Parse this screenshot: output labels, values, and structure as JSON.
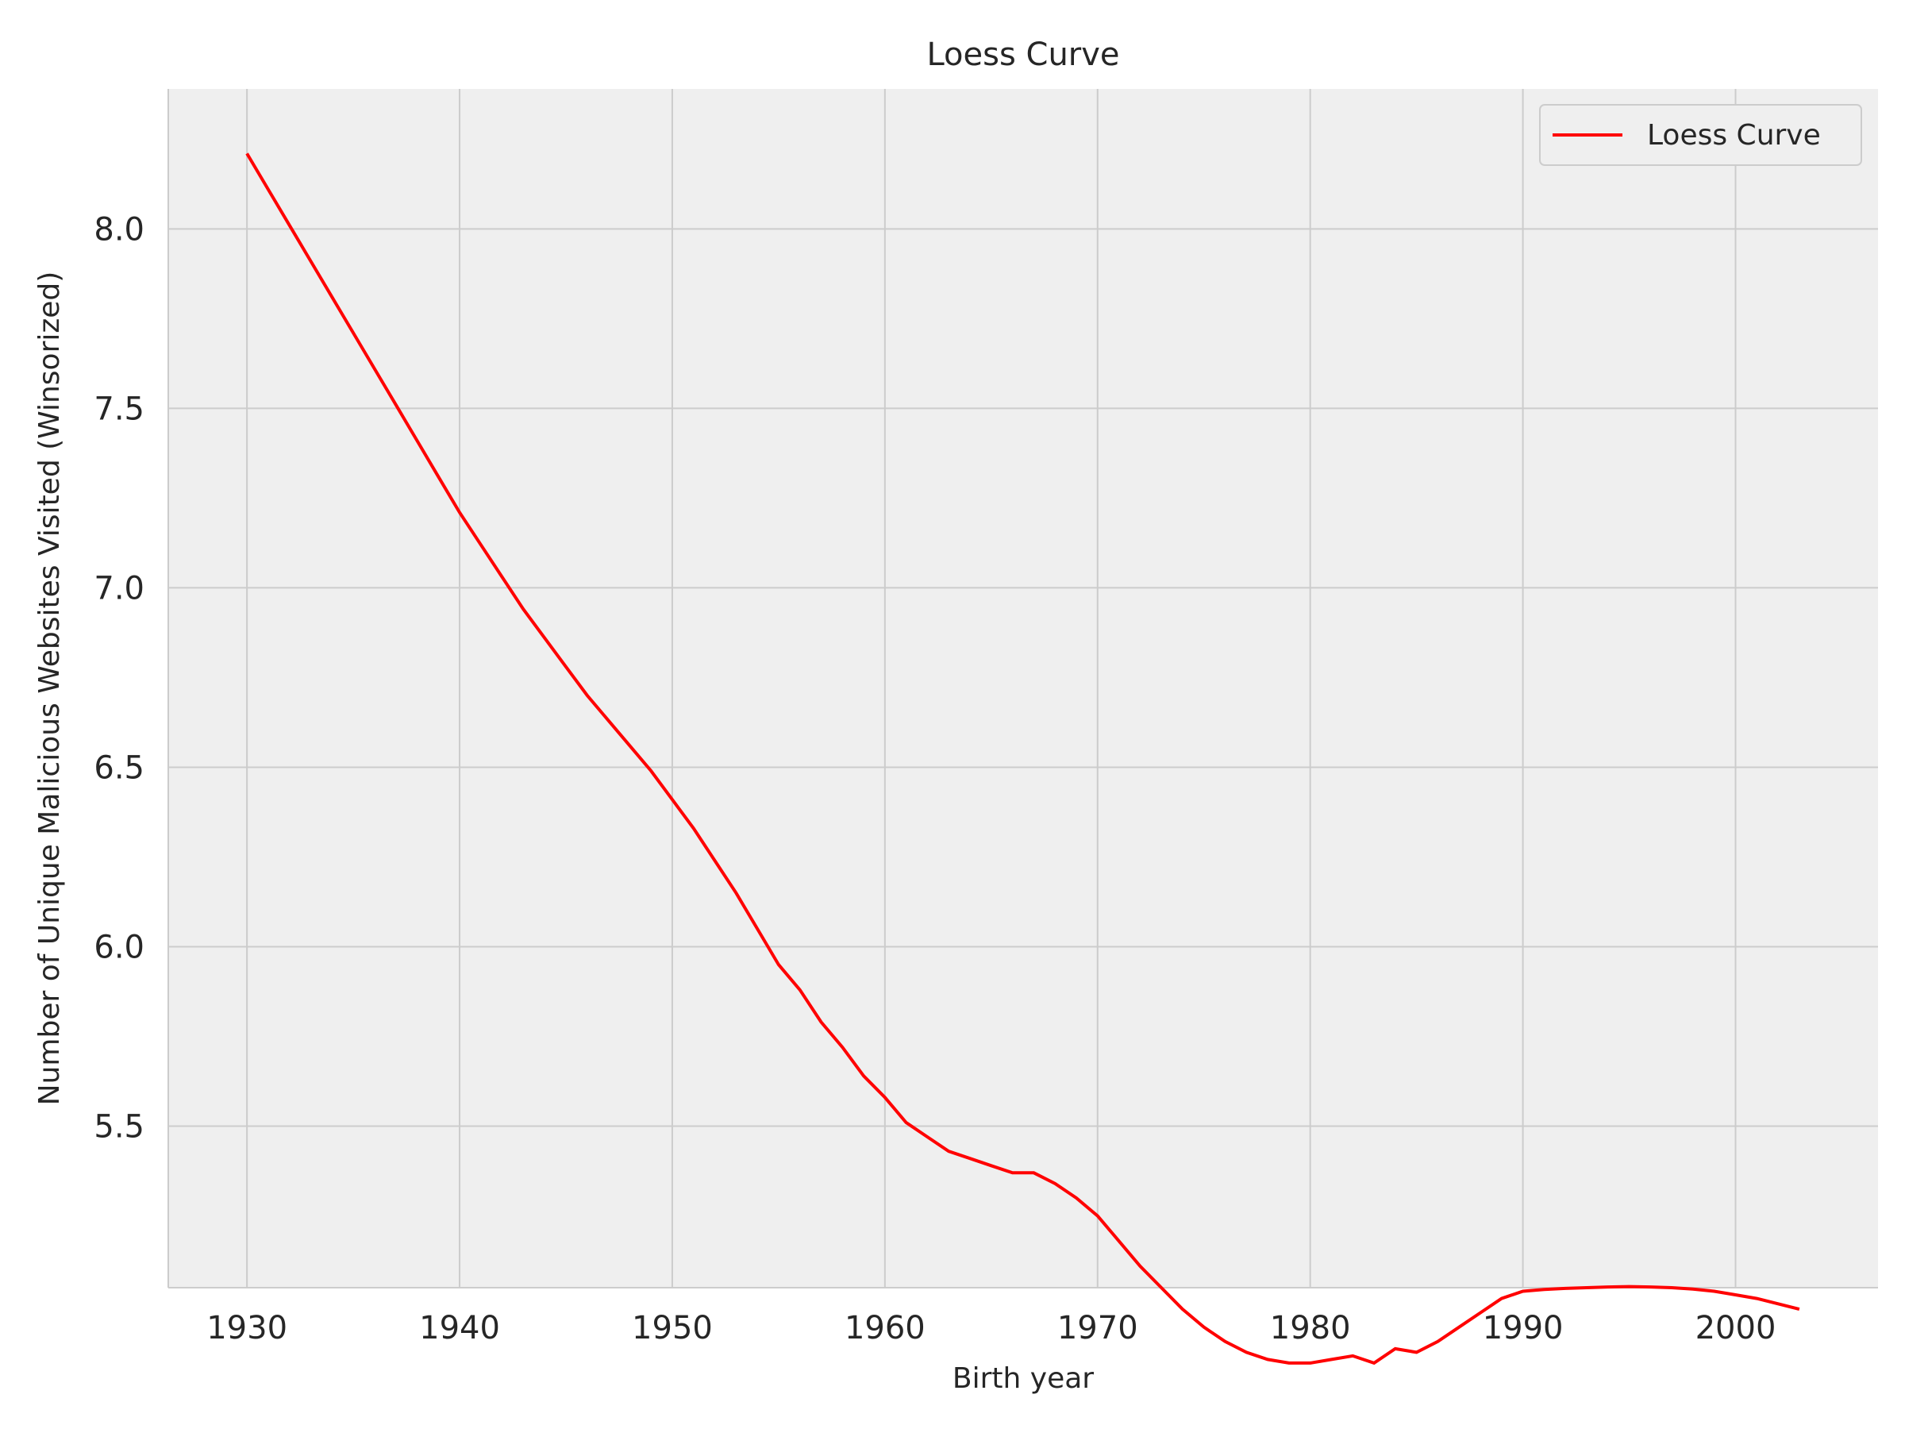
{
  "chart_data": {
    "type": "line",
    "title": "Loess Curve",
    "xlabel": "Birth year",
    "ylabel": "Number of Unique Malicious Websites Visited (Winsorized)",
    "xlim": [
      1926.3,
      2006.7
    ],
    "ylim": [
      5.05,
      8.39
    ],
    "xticks": [
      1930,
      1940,
      1950,
      1960,
      1970,
      1980,
      1990,
      2000
    ],
    "yticks": [
      5.5,
      6.0,
      6.5,
      7.0,
      7.5,
      8.0
    ],
    "xtick_labels": [
      "1930",
      "1940",
      "1950",
      "1960",
      "1970",
      "1980",
      "1990",
      "2000"
    ],
    "ytick_labels": [
      "5.5",
      "6.0",
      "6.5",
      "7.0",
      "7.5",
      "8.0"
    ],
    "grid": true,
    "legend_position": "top-right",
    "colors": {
      "background": "#efefef",
      "grid": "#cccccc",
      "line": "#ff0000",
      "axis": "#cccccc"
    },
    "series": [
      {
        "name": "Loess Curve",
        "color": "#ff0000",
        "x": [
          1930,
          1931,
          1932,
          1933,
          1934,
          1935,
          1936,
          1937,
          1938,
          1939,
          1940,
          1941,
          1942,
          1943,
          1944,
          1945,
          1946,
          1947,
          1948,
          1949,
          1950,
          1951,
          1952,
          1953,
          1954,
          1955,
          1956,
          1957,
          1958,
          1959,
          1960,
          1961,
          1962,
          1963,
          1964,
          1965,
          1966,
          1967,
          1968,
          1969,
          1970,
          1971,
          1972,
          1973,
          1974,
          1975,
          1976,
          1977,
          1978,
          1979,
          1980,
          1981,
          1982,
          1983,
          1984,
          1985,
          1986,
          1987,
          1988,
          1989,
          1990,
          1991,
          1992,
          1993,
          1994,
          1995,
          1996,
          1997,
          1998,
          1999,
          2000,
          2001,
          2002,
          2003
        ],
        "y": [
          8.21,
          8.11,
          8.01,
          7.91,
          7.81,
          7.71,
          7.61,
          7.51,
          7.41,
          7.31,
          7.21,
          7.12,
          7.03,
          6.94,
          6.86,
          6.78,
          6.7,
          6.63,
          6.56,
          6.49,
          6.41,
          6.33,
          6.24,
          6.15,
          6.05,
          5.95,
          5.88,
          5.79,
          5.72,
          5.64,
          5.58,
          5.51,
          5.47,
          5.43,
          5.41,
          5.39,
          5.37,
          5.37,
          5.34,
          5.3,
          5.25,
          5.18,
          5.11,
          5.05,
          4.99,
          4.94,
          4.9,
          4.87,
          4.85,
          4.84,
          4.84,
          4.85,
          4.86,
          4.84,
          4.88,
          4.87,
          4.9,
          4.94,
          4.98,
          5.02,
          5.04,
          5.045,
          5.048,
          5.05,
          5.052,
          5.053,
          5.052,
          5.05,
          5.046,
          5.04,
          5.03,
          5.02,
          5.005,
          4.99
        ]
      }
    ]
  }
}
